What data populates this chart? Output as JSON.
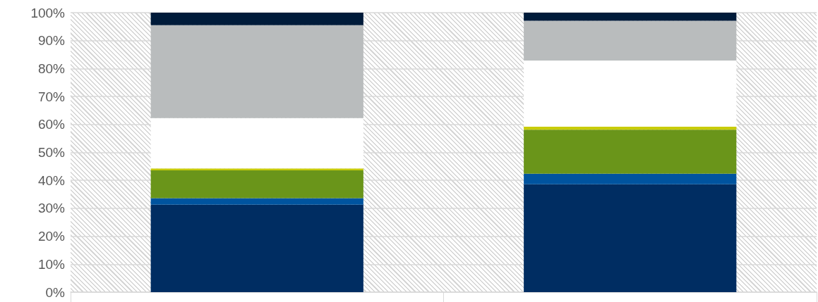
{
  "chart_data": {
    "type": "bar",
    "stacked": true,
    "categories": [
      null,
      null
    ],
    "series": [
      {
        "color": "#002d62",
        "values": [
          31.3,
          38.6
        ]
      },
      {
        "color": "#00549f",
        "values": [
          2.3,
          3.8
        ]
      },
      {
        "color": "#6a951a",
        "values": [
          10.0,
          15.7
        ]
      },
      {
        "color": "#c8cc0a",
        "values": [
          0.7,
          1.1
        ]
      },
      {
        "color": "#ffffff",
        "values": [
          18.0,
          23.7
        ]
      },
      {
        "color": "#b9bcbd",
        "values": [
          33.2,
          14.2
        ]
      },
      {
        "color": "#001b3a",
        "values": [
          4.5,
          2.9
        ]
      }
    ],
    "ylim": [
      0,
      100
    ],
    "yticks": [
      {
        "value": 0,
        "label": "0%"
      },
      {
        "value": 10,
        "label": "10%"
      },
      {
        "value": 20,
        "label": "20%"
      },
      {
        "value": 30,
        "label": "30%"
      },
      {
        "value": 40,
        "label": "40%"
      },
      {
        "value": 50,
        "label": "50%"
      },
      {
        "value": 60,
        "label": "60%"
      },
      {
        "value": 70,
        "label": "70%"
      },
      {
        "value": 80,
        "label": "80%"
      },
      {
        "value": 90,
        "label": "90%"
      },
      {
        "value": 100,
        "label": "100%"
      }
    ],
    "grid": "y",
    "legend": false
  }
}
